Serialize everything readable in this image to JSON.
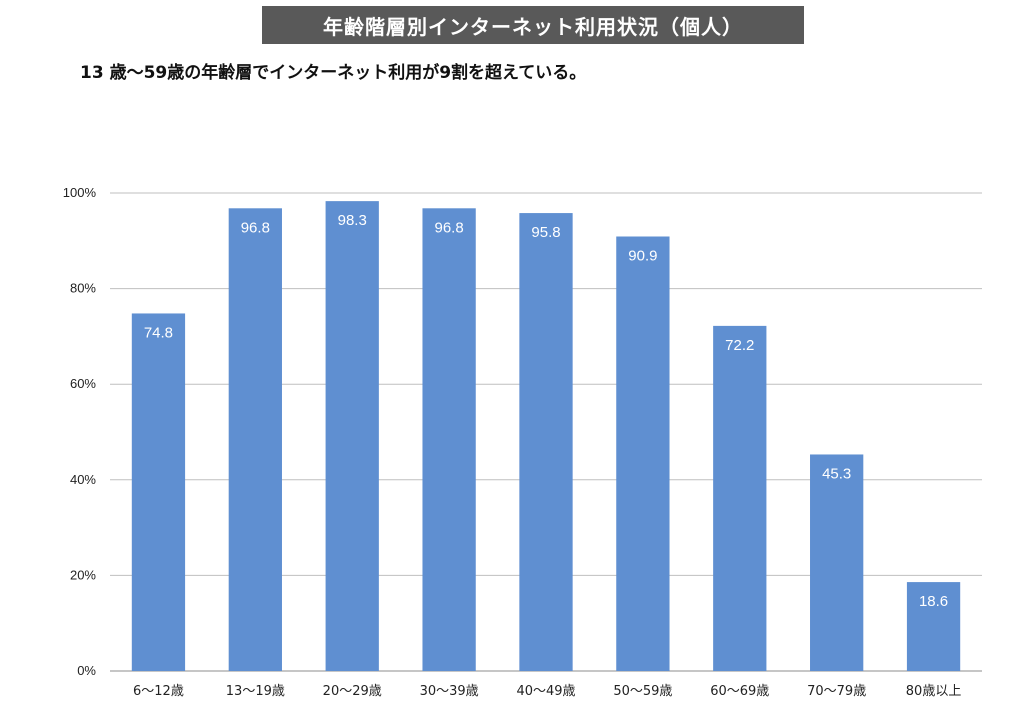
{
  "header": {
    "title": "年齢階層別インターネット利用状況（個人）",
    "subtitle": "13 歳～59歳の年齢層でインターネット利用が9割を超えている。"
  },
  "colors": {
    "bar": "#5f8fd1",
    "title_bg": "#595959",
    "grid": "#bfbfbf"
  },
  "chart_data": {
    "type": "bar",
    "categories": [
      "6～12歳",
      "13～19歳",
      "20～29歳",
      "30～39歳",
      "40～49歳",
      "50～59歳",
      "60～69歳",
      "70～79歳",
      "80歳以上"
    ],
    "values": [
      74.8,
      96.8,
      98.3,
      96.8,
      95.8,
      90.9,
      72.2,
      45.3,
      18.6
    ],
    "data_labels": [
      "74.8",
      "96.8",
      "98.3",
      "96.8",
      "95.8",
      "90.9",
      "72.2",
      "45.3",
      "18.6"
    ],
    "yticks": [
      0,
      20,
      40,
      60,
      80,
      100
    ],
    "ytick_labels": [
      "0%",
      "20%",
      "40%",
      "60%",
      "80%",
      "100%"
    ],
    "ylim": [
      0,
      100
    ],
    "grid": true,
    "legend": "none"
  }
}
